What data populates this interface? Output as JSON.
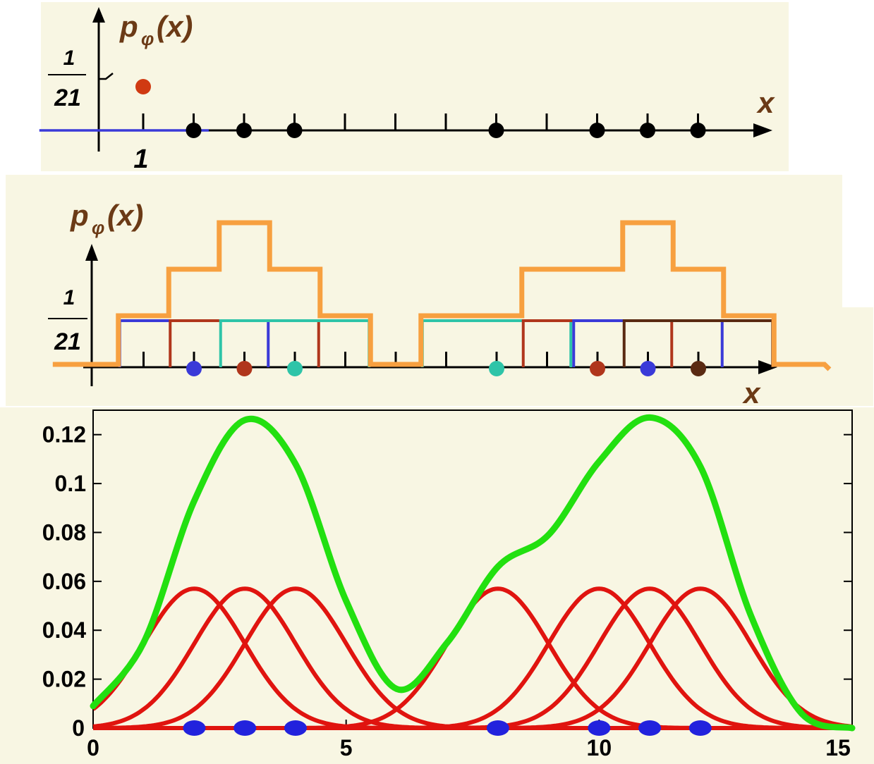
{
  "top_panel": {
    "ylabel_symbol": "p",
    "ylabel_sub": "φ",
    "ylabel_arg": "(x)",
    "frac_num": "1",
    "frac_den": "21",
    "xlabel": "x",
    "tick_label": "1"
  },
  "mid_panel": {
    "ylabel_symbol": "p",
    "ylabel_sub": "φ",
    "ylabel_arg": "(x)",
    "frac_num": "1",
    "frac_den": "21",
    "xlabel": "x"
  },
  "bottom_panel": {
    "y_ticks": [
      "0",
      "0.02",
      "0.04",
      "0.06",
      "0.08",
      "0.1",
      "0.12"
    ],
    "x_ticks": [
      "0",
      "5",
      "10",
      "15"
    ]
  },
  "colors": {
    "background": "#f8f6e3",
    "kernel": "#e0140f",
    "sum": "#22e010",
    "sample": "#2222dd",
    "box_sum": "#f7a040"
  },
  "chart_data": [
    {
      "type": "scatter",
      "title": "",
      "xlabel": "x",
      "ylabel": "pφ(x)",
      "samples": [
        2,
        3,
        4,
        8,
        10,
        11,
        12
      ],
      "highlight_point": {
        "x": 1,
        "y": "1/21"
      },
      "flat_line_x": [
        -0.5,
        2.3
      ]
    },
    {
      "type": "line",
      "title": "",
      "xlabel": "x",
      "ylabel": "pφ(x)",
      "window_width": 3,
      "box_height": "1/21",
      "samples": [
        2,
        3,
        4,
        8,
        10,
        11,
        12
      ],
      "sample_colors": [
        "#3a3ad8",
        "#b0361c",
        "#2ec4a8",
        "#2ec4a8",
        "#b0361c",
        "#3a3ad8",
        "#5a2a12"
      ],
      "box_sum_steps": {
        "x": [
          -0.5,
          0.5,
          1.5,
          2.5,
          3.5,
          4.5,
          5.5,
          6.5,
          7.5,
          8.5,
          9.5,
          10.5,
          11.5,
          12.5,
          13.5,
          14.5
        ],
        "level": [
          0,
          1,
          2,
          3,
          2,
          1,
          0,
          1,
          1,
          2,
          2,
          3,
          2,
          1,
          0
        ]
      }
    },
    {
      "type": "line",
      "title": "",
      "xlabel": "",
      "ylabel": "",
      "xlim": [
        0,
        15
      ],
      "ylim": [
        0,
        0.13
      ],
      "samples": [
        2,
        3,
        4,
        8,
        10,
        11,
        12
      ],
      "kernel_sigma": 1.0,
      "kernel_peak": 0.057,
      "series": [
        {
          "role": "kernels",
          "centers": [
            2,
            3,
            4,
            8,
            10,
            11,
            12
          ],
          "peak": 0.057
        },
        {
          "role": "sum",
          "points": [
            [
              0,
              0.009
            ],
            [
              1,
              0.035
            ],
            [
              2,
              0.093
            ],
            [
              3,
              0.126
            ],
            [
              4,
              0.108
            ],
            [
              5,
              0.052
            ],
            [
              6,
              0.016
            ],
            [
              7,
              0.035
            ],
            [
              8,
              0.066
            ],
            [
              9,
              0.079
            ],
            [
              10,
              0.109
            ],
            [
              11,
              0.127
            ],
            [
              12,
              0.107
            ],
            [
              13,
              0.046
            ],
            [
              14,
              0.006
            ],
            [
              15,
              0.0
            ]
          ]
        }
      ]
    }
  ]
}
